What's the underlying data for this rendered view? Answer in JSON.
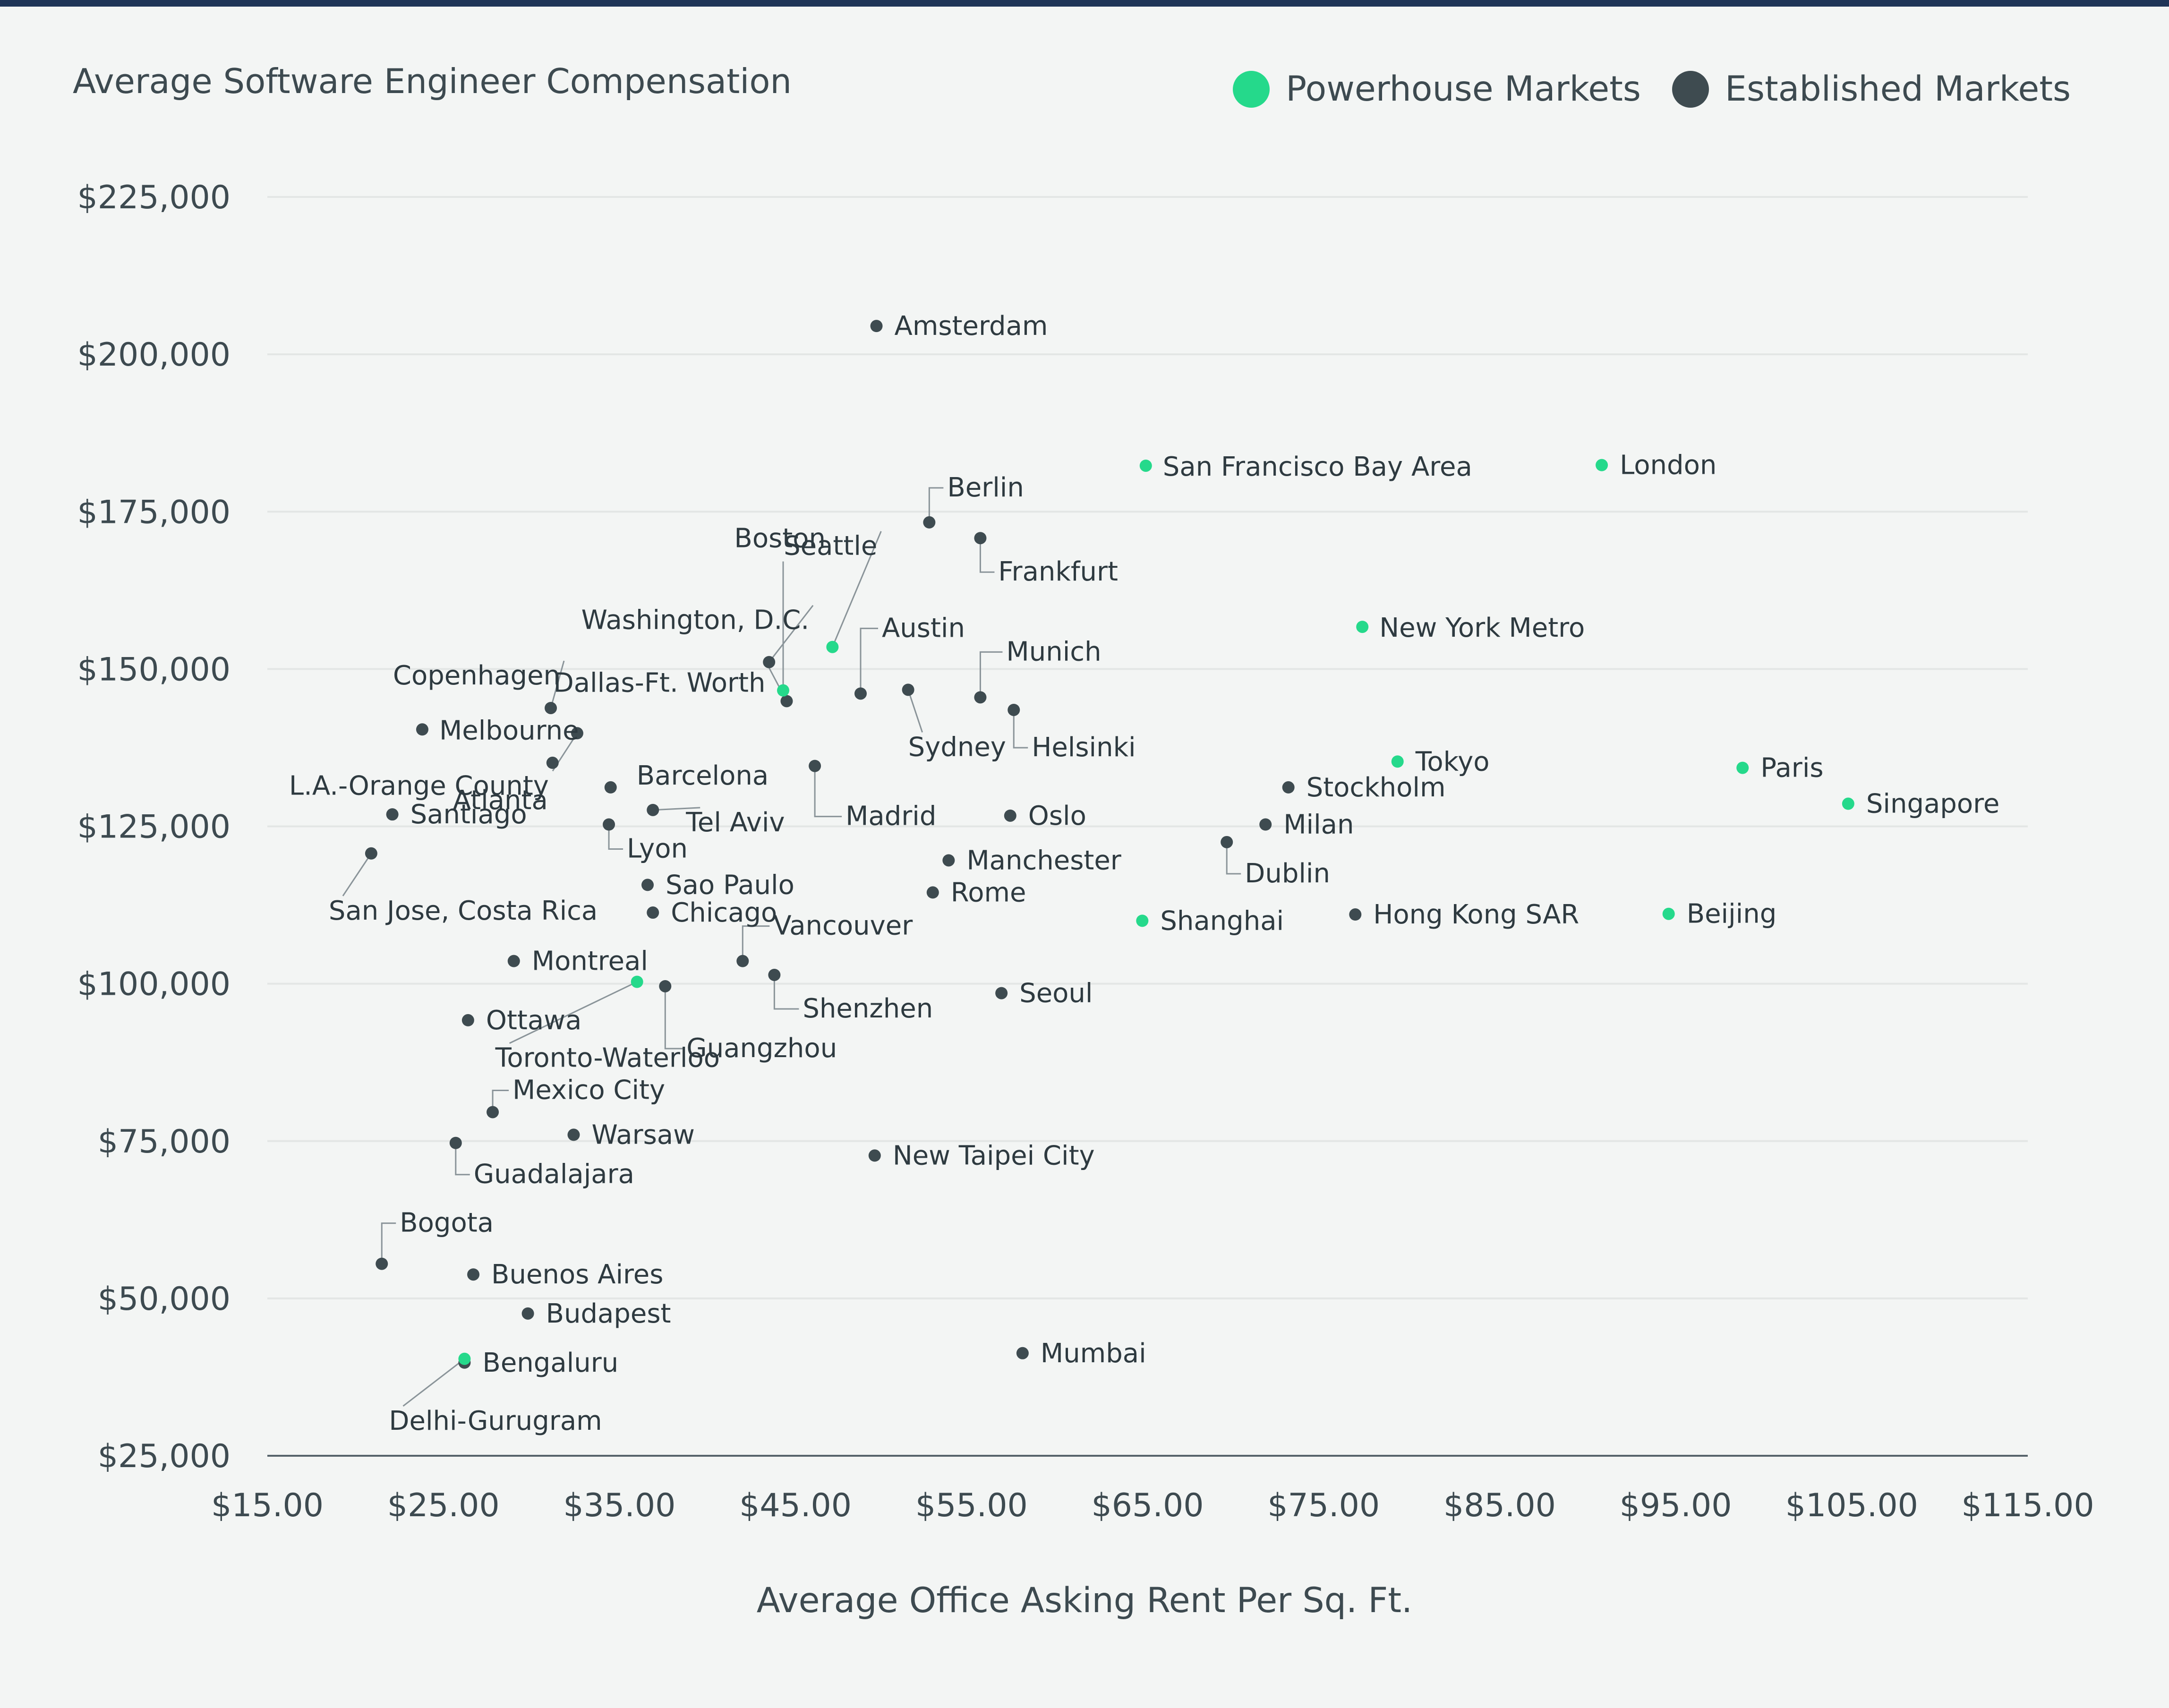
{
  "legend": {
    "powerhouse_label": "Powerhouse Markets",
    "established_label": "Established Markets"
  },
  "colors": {
    "powerhouse": "#25d98b",
    "established": "#3e4b50",
    "background": "#f3f5f4",
    "top_rule": "#1f3557",
    "grid": "#e3e6e5",
    "leader": "#8a9499"
  },
  "chart_data": {
    "type": "scatter",
    "title": "",
    "ylabel": "Average Software Engineer Compensation",
    "xlabel": "Average Office Asking Rent Per Sq. Ft.",
    "xlim": [
      15,
      115
    ],
    "ylim": [
      25000,
      225000
    ],
    "x_ticks": [
      15,
      25,
      35,
      45,
      55,
      65,
      75,
      85,
      95,
      105,
      115
    ],
    "x_tick_labels": [
      "$15.00",
      "$25.00",
      "$35.00",
      "$45.00",
      "$55.00",
      "$65.00",
      "$75.00",
      "$85.00",
      "$95.00",
      "$105.00",
      "$115.00"
    ],
    "y_ticks": [
      25000,
      50000,
      75000,
      100000,
      125000,
      150000,
      175000,
      200000,
      225000
    ],
    "y_tick_labels": [
      "$25,000",
      "$50,000",
      "$75,000",
      "$100,000",
      "$125,000",
      "$150,000",
      "$175,000",
      "$200,000",
      "$225,000"
    ],
    "grid": "horizontal",
    "legend_position": "top-right",
    "series": [
      {
        "name": "Powerhouse Markets",
        "points": [
          {
            "label": "San Francisco Bay Area",
            "x": 64.9,
            "y": 182300
          },
          {
            "label": "London",
            "x": 90.8,
            "y": 182400
          },
          {
            "label": "Seattle",
            "x": 47.1,
            "y": 153500
          },
          {
            "label": "Boston",
            "x": 44.3,
            "y": 146600
          },
          {
            "label": "New York Metro",
            "x": 77.2,
            "y": 156700
          },
          {
            "label": "Tokyo",
            "x": 79.2,
            "y": 135300
          },
          {
            "label": "Paris",
            "x": 98.8,
            "y": 134300
          },
          {
            "label": "Singapore",
            "x": 104.8,
            "y": 128600
          },
          {
            "label": "Beijing",
            "x": 94.6,
            "y": 111100
          },
          {
            "label": "Shanghai",
            "x": 64.7,
            "y": 110000
          },
          {
            "label": "Toronto-Waterloo",
            "x": 36.0,
            "y": 100300
          },
          {
            "label": "Delhi-Gurugram",
            "x": 26.2,
            "y": 40400
          }
        ]
      },
      {
        "name": "Established Markets",
        "points": [
          {
            "label": "Amsterdam",
            "x": 49.6,
            "y": 204500
          },
          {
            "label": "Berlin",
            "x": 52.6,
            "y": 173300
          },
          {
            "label": "Frankfurt",
            "x": 55.5,
            "y": 170800
          },
          {
            "label": "Washington, D.C.",
            "x": 43.5,
            "y": 151100
          },
          {
            "label": "Austin",
            "x": 48.7,
            "y": 146100
          },
          {
            "label": "Munich",
            "x": 55.5,
            "y": 145500
          },
          {
            "label": "Sydney",
            "x": 51.4,
            "y": 146700
          },
          {
            "label": "Helsinki",
            "x": 57.4,
            "y": 143500
          },
          {
            "label": "Copenhagen",
            "x": 31.1,
            "y": 143800
          },
          {
            "label": "Dallas-Ft. Worth",
            "x": 44.5,
            "y": 144900
          },
          {
            "label": "Melbourne",
            "x": 23.8,
            "y": 140400
          },
          {
            "label": "L.A.-Orange County",
            "x": 32.6,
            "y": 139800
          },
          {
            "label": "Atlanta",
            "x": 31.2,
            "y": 135100
          },
          {
            "label": "Madrid",
            "x": 46.1,
            "y": 134600
          },
          {
            "label": "Barcelona",
            "x": 34.5,
            "y": 131200
          },
          {
            "label": "Stockholm",
            "x": 73.0,
            "y": 131200
          },
          {
            "label": "Tel Aviv",
            "x": 36.9,
            "y": 127600
          },
          {
            "label": "Santiago",
            "x": 22.1,
            "y": 126900
          },
          {
            "label": "Oslo",
            "x": 57.2,
            "y": 126700
          },
          {
            "label": "Lyon",
            "x": 34.4,
            "y": 125300
          },
          {
            "label": "Milan",
            "x": 71.7,
            "y": 125300
          },
          {
            "label": "Dublin",
            "x": 69.5,
            "y": 122500
          },
          {
            "label": "San Jose, Costa Rica",
            "x": 20.9,
            "y": 120700
          },
          {
            "label": "Manchester",
            "x": 53.7,
            "y": 119600
          },
          {
            "label": "Sao Paulo",
            "x": 36.6,
            "y": 115700
          },
          {
            "label": "Rome",
            "x": 52.8,
            "y": 114500
          },
          {
            "label": "Chicago",
            "x": 36.9,
            "y": 111300
          },
          {
            "label": "Hong Kong SAR",
            "x": 76.8,
            "y": 111000
          },
          {
            "label": "Vancouver",
            "x": 42.0,
            "y": 103600
          },
          {
            "label": "Montreal",
            "x": 29.0,
            "y": 103600
          },
          {
            "label": "Shenzhen",
            "x": 43.8,
            "y": 101400
          },
          {
            "label": "Guangzhou",
            "x": 37.6,
            "y": 99600
          },
          {
            "label": "Seoul",
            "x": 56.7,
            "y": 98500
          },
          {
            "label": "Ottawa",
            "x": 26.4,
            "y": 94200
          },
          {
            "label": "Mexico City",
            "x": 27.8,
            "y": 79600
          },
          {
            "label": "Warsaw",
            "x": 32.4,
            "y": 76000
          },
          {
            "label": "Guadalajara",
            "x": 25.7,
            "y": 74700
          },
          {
            "label": "New Taipei City",
            "x": 49.5,
            "y": 72700
          },
          {
            "label": "Bogota",
            "x": 21.5,
            "y": 55500
          },
          {
            "label": "Buenos Aires",
            "x": 26.7,
            "y": 53800
          },
          {
            "label": "Budapest",
            "x": 29.8,
            "y": 47600
          },
          {
            "label": "Mumbai",
            "x": 57.9,
            "y": 41300
          },
          {
            "label": "Bengaluru",
            "x": 26.2,
            "y": 39800
          }
        ]
      }
    ]
  }
}
